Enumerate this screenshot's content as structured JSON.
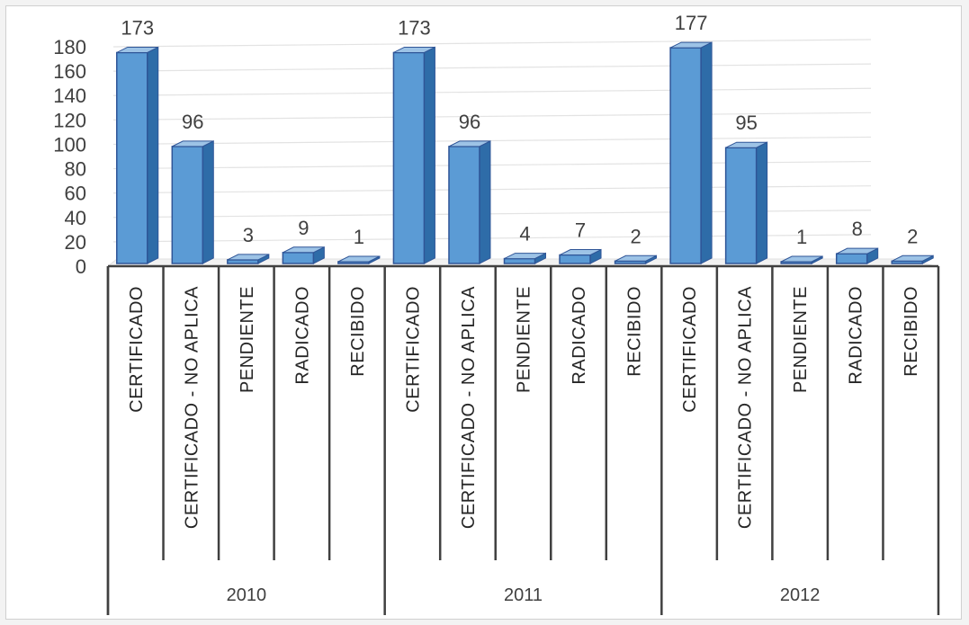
{
  "chart_data": {
    "type": "bar",
    "style": "3d-column",
    "ylim": [
      0,
      180
    ],
    "yticks": [
      0,
      20,
      40,
      60,
      80,
      100,
      120,
      140,
      160,
      180
    ],
    "grid": true,
    "legend": "none",
    "groups": [
      {
        "label": "2010",
        "categories": [
          "CERTIFICADO",
          "CERTIFICADO - NO APLICA",
          "PENDIENTE",
          "RADICADO",
          "RECIBIDO"
        ],
        "values": [
          173,
          96,
          3,
          9,
          1
        ]
      },
      {
        "label": "2011",
        "categories": [
          "CERTIFICADO",
          "CERTIFICADO - NO APLICA",
          "PENDIENTE",
          "RADICADO",
          "RECIBIDO"
        ],
        "values": [
          173,
          96,
          4,
          7,
          2
        ]
      },
      {
        "label": "2012",
        "categories": [
          "CERTIFICADO",
          "CERTIFICADO - NO APLICA",
          "PENDIENTE",
          "RADICADO",
          "RECIBIDO"
        ],
        "values": [
          177,
          95,
          1,
          8,
          2
        ]
      }
    ],
    "colors": {
      "front": "#5b9bd5",
      "side": "#2e6ca8",
      "top": "#9dc3e6",
      "edge": "#2f5597",
      "grid": "#e3e3e3",
      "axis": "#404040"
    }
  }
}
